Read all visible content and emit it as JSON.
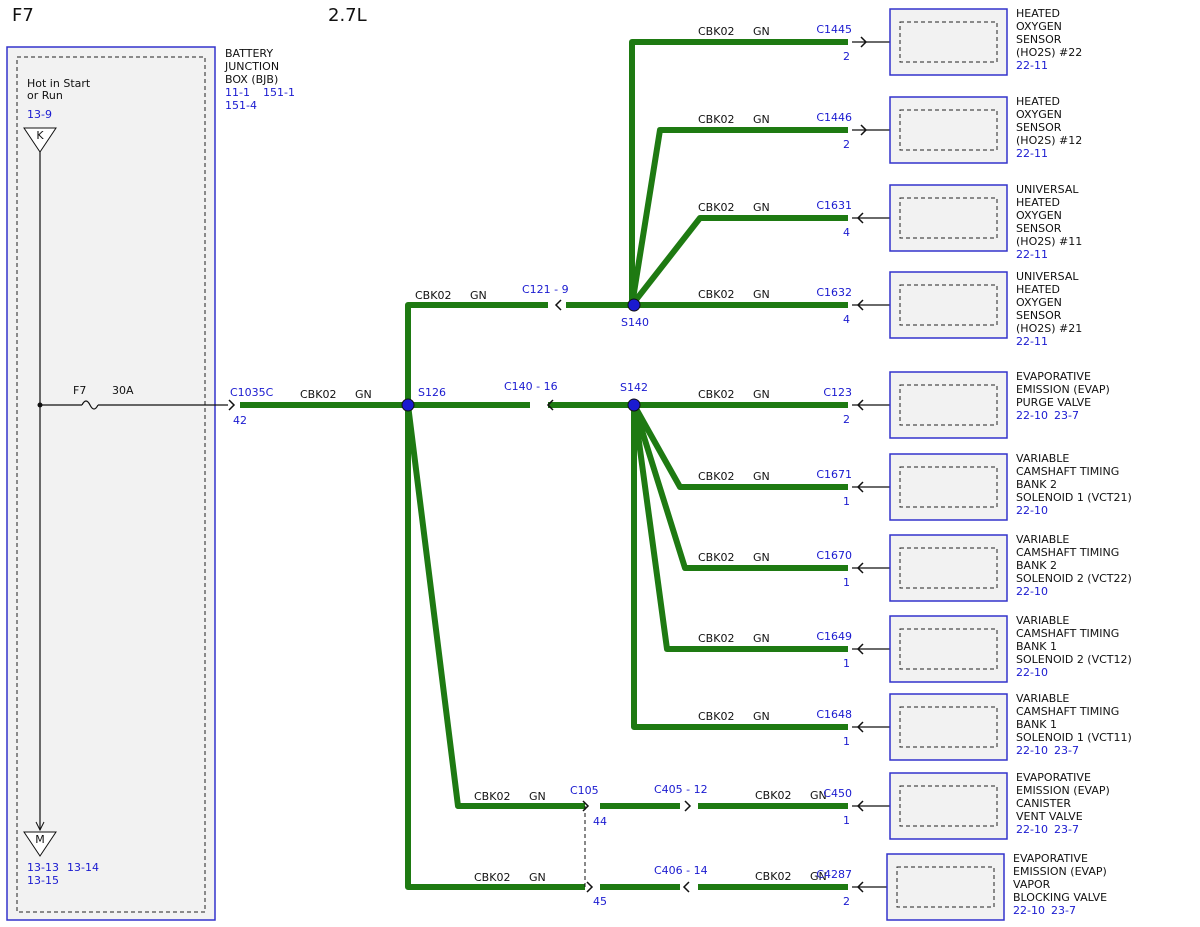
{
  "header": {
    "code": "F7",
    "engine": "2.7L"
  },
  "source": {
    "name": [
      "BATTERY",
      "JUNCTION",
      "BOX (BJB)"
    ],
    "refs": [
      "11-1",
      "151-1",
      "151-4"
    ],
    "feed": [
      "Hot in Start",
      "or Run"
    ],
    "feed_ref": "13-9",
    "top_pin": "K",
    "bottom_pin": "M",
    "bottom_refs": [
      "13-13",
      "13-14",
      "13-15"
    ],
    "fuse": "F7",
    "rating": "30A",
    "connector": "C1035C",
    "pin": "42"
  },
  "splices": [
    "S126",
    "S140",
    "S142"
  ],
  "inline": [
    "C121 - 9",
    "C140 - 16",
    "C405 - 12",
    "C406 - 14"
  ],
  "c105": {
    "name": "C105",
    "pins": [
      "44",
      "45"
    ]
  },
  "wires": [
    {
      "circuit": "CBK02",
      "color": "GN"
    },
    {
      "circuit": "CBK02",
      "color": "GN"
    },
    {
      "circuit": "CBK02",
      "color": "GN"
    },
    {
      "circuit": "CBK02",
      "color": "GN"
    }
  ],
  "components": [
    {
      "connector": "C1445",
      "pin": "2",
      "name": [
        "HEATED",
        "OXYGEN",
        "SENSOR",
        "(HO2S) #22"
      ],
      "refs": [
        "22-11"
      ],
      "wire": {
        "circuit": "CBK02",
        "color": "GN"
      }
    },
    {
      "connector": "C1446",
      "pin": "2",
      "name": [
        "HEATED",
        "OXYGEN",
        "SENSOR",
        "(HO2S) #12"
      ],
      "refs": [
        "22-11"
      ],
      "wire": {
        "circuit": "CBK02",
        "color": "GN"
      }
    },
    {
      "connector": "C1631",
      "pin": "4",
      "name": [
        "UNIVERSAL",
        "HEATED",
        "OXYGEN",
        "SENSOR",
        "(HO2S) #11"
      ],
      "refs": [
        "22-11"
      ],
      "wire": {
        "circuit": "CBK02",
        "color": "GN"
      }
    },
    {
      "connector": "C1632",
      "pin": "4",
      "name": [
        "UNIVERSAL",
        "HEATED",
        "OXYGEN",
        "SENSOR",
        "(HO2S) #21"
      ],
      "refs": [
        "22-11"
      ],
      "wire": {
        "circuit": "CBK02",
        "color": "GN"
      }
    },
    {
      "connector": "C123",
      "pin": "2",
      "name": [
        "EVAPORATIVE",
        "EMISSION (EVAP)",
        "PURGE VALVE"
      ],
      "refs": [
        "22-10",
        "23-7"
      ],
      "wire": {
        "circuit": "CBK02",
        "color": "GN"
      }
    },
    {
      "connector": "C1671",
      "pin": "1",
      "name": [
        "VARIABLE",
        "CAMSHAFT TIMING",
        "BANK 2",
        "SOLENOID 1 (VCT21)"
      ],
      "refs": [
        "22-10"
      ],
      "wire": {
        "circuit": "CBK02",
        "color": "GN"
      }
    },
    {
      "connector": "C1670",
      "pin": "1",
      "name": [
        "VARIABLE",
        "CAMSHAFT TIMING",
        "BANK 2",
        "SOLENOID 2 (VCT22)"
      ],
      "refs": [
        "22-10"
      ],
      "wire": {
        "circuit": "CBK02",
        "color": "GN"
      }
    },
    {
      "connector": "C1649",
      "pin": "1",
      "name": [
        "VARIABLE",
        "CAMSHAFT TIMING",
        "BANK 1",
        "SOLENOID 2 (VCT12)"
      ],
      "refs": [
        "22-10"
      ],
      "wire": {
        "circuit": "CBK02",
        "color": "GN"
      }
    },
    {
      "connector": "C1648",
      "pin": "1",
      "name": [
        "VARIABLE",
        "CAMSHAFT TIMING",
        "BANK 1",
        "SOLENOID 1 (VCT11)"
      ],
      "refs": [
        "22-10",
        "23-7"
      ],
      "wire": {
        "circuit": "CBK02",
        "color": "GN"
      }
    },
    {
      "connector": "C450",
      "pin": "1",
      "name": [
        "EVAPORATIVE",
        "EMISSION (EVAP)",
        "CANISTER",
        "VENT VALVE"
      ],
      "refs": [
        "22-10",
        "23-7"
      ],
      "wire": {
        "circuit": "CBK02",
        "color": "GN"
      }
    },
    {
      "connector": "C4287",
      "pin": "2",
      "name": [
        "EVAPORATIVE",
        "EMISSION (EVAP)",
        "VAPOR",
        "BLOCKING VALVE"
      ],
      "refs": [
        "22-10",
        "23-7"
      ],
      "wire": {
        "circuit": "CBK02",
        "color": "GN"
      }
    }
  ]
}
